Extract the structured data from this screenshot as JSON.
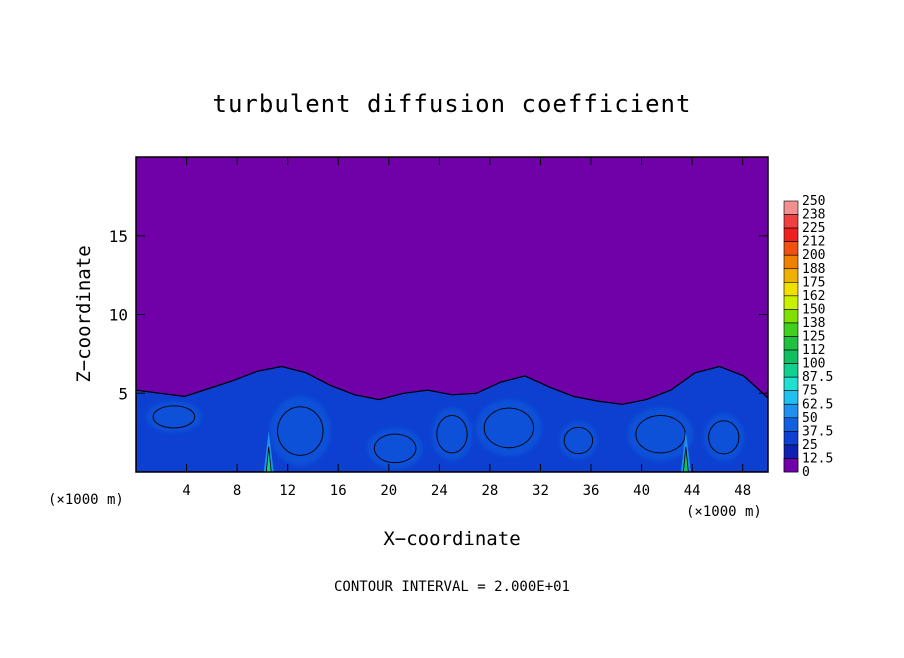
{
  "chart_data": {
    "type": "heatmap",
    "title": "turbulent diffusion coefficient",
    "xlabel": "X−coordinate",
    "ylabel": "Z−coordinate",
    "x_unit_left": "(×1000 m)",
    "x_unit_right": "(×1000 m)",
    "footer": "CONTOUR INTERVAL = 2.000E+01",
    "xlim": [
      0,
      50
    ],
    "ylim": [
      0,
      20
    ],
    "xticks": [
      4,
      8,
      12,
      16,
      20,
      24,
      28,
      32,
      36,
      40,
      44,
      48
    ],
    "yticks": [
      5,
      10,
      15
    ],
    "background_value": 0,
    "colorbar": {
      "labels": [
        "250",
        "238",
        "225",
        "212",
        "200",
        "188",
        "175",
        "162",
        "150",
        "138",
        "125",
        "112",
        "100",
        "87.5",
        "75",
        "62.5",
        "50",
        "37.5",
        "25",
        "12.5",
        "0"
      ],
      "colors": [
        "#f09090",
        "#f04040",
        "#f02020",
        "#f05010",
        "#f08000",
        "#f0b000",
        "#f0e000",
        "#c8f000",
        "#80e000",
        "#40d020",
        "#20c040",
        "#10c060",
        "#10d090",
        "#20e0d0",
        "#20c0f0",
        "#2090f0",
        "#1060e0",
        "#1040d0",
        "#1020b0",
        "#200090",
        "#7000a8"
      ]
    },
    "field": {
      "turbulent_layer_top_km": [
        5.2,
        5.0,
        4.8,
        5.3,
        5.8,
        6.4,
        6.7,
        6.3,
        5.5,
        4.9,
        4.6,
        5.0,
        5.2,
        4.9,
        5.0,
        5.7,
        6.1,
        5.4,
        4.8,
        4.5,
        4.3,
        4.6,
        5.2,
        6.3,
        6.7,
        6.1,
        4.7
      ],
      "typical_layer_value": 37.5,
      "peak_values": [
        {
          "x": 10.5,
          "value": 100
        },
        {
          "x": 43.5,
          "value": 112
        }
      ]
    }
  }
}
